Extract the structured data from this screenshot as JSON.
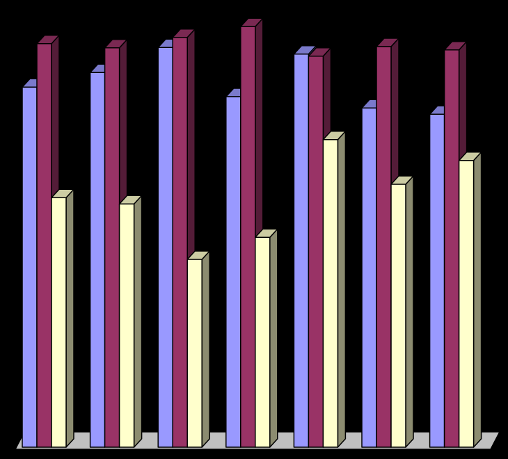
{
  "chart_data": {
    "type": "bar3d",
    "categories": [
      null,
      null,
      null,
      null,
      null,
      null,
      null
    ],
    "series": [
      {
        "color": "#9999ff",
        "values": [
          86.3,
          89.8,
          95.8,
          84,
          94.2,
          81.3,
          79.8
        ]
      },
      {
        "color": "#993366",
        "values": [
          96.7,
          95.7,
          98.2,
          100.8,
          93.7,
          96,
          95.2
        ]
      },
      {
        "color": "#ffffcc",
        "values": [
          59.8,
          58.3,
          45,
          50.3,
          73.7,
          63,
          68.7
        ]
      }
    ],
    "ylim": [
      0,
      105
    ],
    "floor_color": "#c0c0c0"
  }
}
